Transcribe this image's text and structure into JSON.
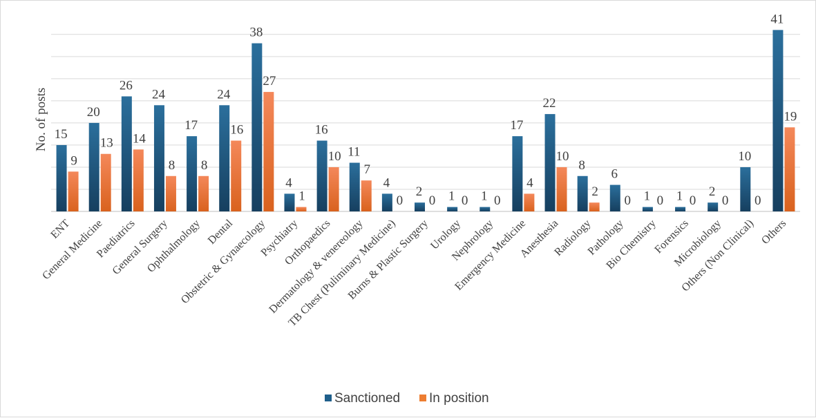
{
  "chart_data": {
    "type": "bar",
    "title": "",
    "xlabel": "",
    "ylabel": "No. of posts",
    "ylim": [
      0,
      42
    ],
    "grid": true,
    "legend_placement": "bottom",
    "categories": [
      "ENT",
      "General Medicine",
      "Paediatrics",
      "General Surgery",
      "Ophthalmology",
      "Dental",
      "Obstetric & Gynaecology",
      "Psychiatry",
      "Orthopaedics",
      "Dermatology & venereology",
      "TB Chest  (Puliminary Medicine)",
      "Burns & Plastic Surgery",
      "Urology",
      "Nephrology",
      "Emergency Medicine",
      "Anesthesia",
      "Radiology",
      "Pathology",
      "Bio Chemistry",
      "Forensics",
      "Microbiology",
      "Others (Non Clinical)",
      "Others"
    ],
    "series": [
      {
        "name": "Sanctioned",
        "color": "#1f5f8b",
        "values": [
          15,
          20,
          26,
          24,
          17,
          24,
          38,
          4,
          16,
          11,
          4,
          2,
          1,
          1,
          17,
          22,
          8,
          6,
          1,
          1,
          2,
          10,
          41
        ]
      },
      {
        "name": "In position",
        "color": "#ed7d31",
        "values": [
          9,
          13,
          14,
          8,
          8,
          16,
          27,
          1,
          10,
          7,
          0,
          0,
          0,
          0,
          4,
          10,
          2,
          0,
          0,
          0,
          0,
          0,
          19
        ]
      }
    ]
  }
}
